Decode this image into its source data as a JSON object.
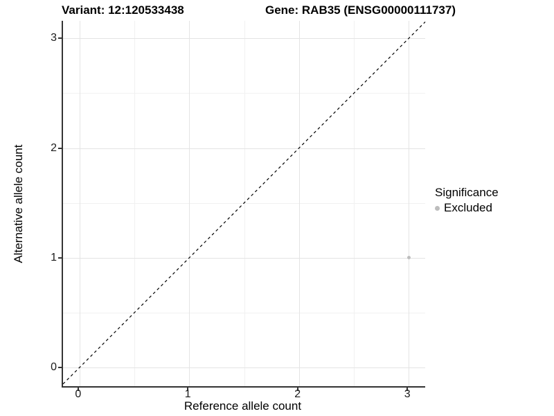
{
  "chart_data": {
    "type": "scatter",
    "title_left": "Variant: 12:120533438",
    "title_right": "Gene: RAB35 (ENSG00000111737)",
    "xlabel": "Reference allele count",
    "ylabel": "Alternative allele count",
    "xticks": [
      0,
      1,
      2,
      3
    ],
    "yticks": [
      0,
      1,
      2,
      3
    ],
    "minor_xticks": [
      0.5,
      1.5,
      2.5
    ],
    "minor_yticks": [
      0.5,
      1.5,
      2.5
    ],
    "xlim": [
      -0.15,
      3.15
    ],
    "ylim": [
      -0.17,
      3.16
    ],
    "grid": true,
    "identity_line": {
      "style": "dashed",
      "slope": 1,
      "intercept": 0,
      "color": "#000000"
    },
    "series": [
      {
        "name": "Excluded",
        "color": "#bdbdbd",
        "points": [
          {
            "x": 3,
            "y": 1
          }
        ]
      }
    ],
    "legend": {
      "title": "Significance",
      "position": "right",
      "items": [
        {
          "label": "Excluded",
          "color": "#bdbdbd"
        }
      ]
    }
  },
  "colors": {
    "grid_major": "#e4e4e4",
    "grid_minor": "#f1f1f1",
    "axis_line": "#333333",
    "point": "#bdbdbd"
  }
}
